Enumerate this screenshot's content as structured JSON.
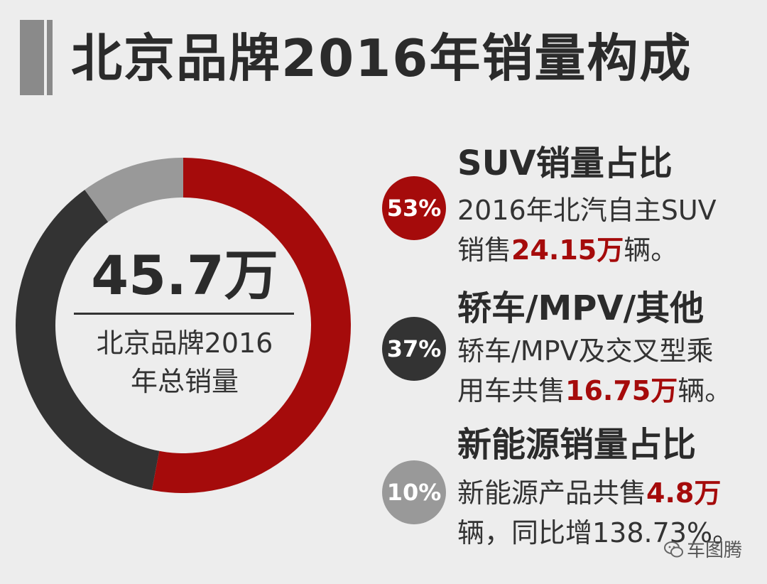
{
  "title": "北京品牌2016年销量构成",
  "center": {
    "total": "45.7万",
    "caption_line1": "北京品牌2016",
    "caption_line2": "年总销量"
  },
  "items": [
    {
      "badge": "53%",
      "heading": "SUV销量占比",
      "line1": "2016年北汽自主SUV",
      "line2_pre": "销售",
      "line2_hl": "24.15万",
      "line2_post": "辆。"
    },
    {
      "badge": "37%",
      "heading": "轿车/MPV/其他",
      "line1": "轿车/MPV及交叉型乘",
      "line2_pre": "用车共售",
      "line2_hl": "16.75万",
      "line2_post": "辆。"
    },
    {
      "badge": "10%",
      "heading": "新能源销量占比",
      "line1_pre": "新能源产品共售",
      "line1_hl": "4.8万",
      "line2": "辆，同比增138.73%。"
    }
  ],
  "watermark": {
    "icon": "wechat-icon",
    "text": "车图腾"
  },
  "colors": {
    "suv": "#a50b0b",
    "sedan": "#333333",
    "nev": "#999999",
    "background": "#ededed"
  },
  "chart_data": {
    "type": "pie",
    "variant": "donut",
    "categories": [
      "SUV",
      "轿车/MPV/其他",
      "新能源"
    ],
    "values": [
      53,
      37,
      10
    ],
    "unit": "%",
    "center_label": "45.7万",
    "start_angle_deg": 0,
    "direction": "clockwise"
  }
}
